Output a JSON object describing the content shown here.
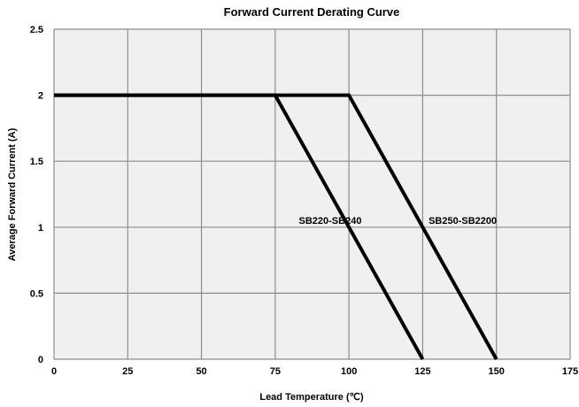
{
  "chart_data": {
    "type": "line",
    "title": "Forward Current Derating Curve",
    "xlabel": "Lead Temperature (℃)",
    "ylabel": "Average Forward Current (A)",
    "xlim": [
      0,
      175
    ],
    "ylim": [
      0,
      2.5
    ],
    "x_ticks": [
      0,
      25,
      50,
      75,
      100,
      125,
      150,
      175
    ],
    "y_ticks": [
      0,
      0.5,
      1,
      1.5,
      2,
      2.5
    ],
    "x_tick_labels": [
      "0",
      "25",
      "50",
      "75",
      "100",
      "125",
      "150",
      "175"
    ],
    "y_tick_labels": [
      "0",
      "0.5",
      "1",
      "1.5",
      "2",
      "2.5"
    ],
    "grid": true,
    "plot_background": "#f0f0f0",
    "grid_color": "#8c8c8c",
    "line_color": "#000000",
    "series": [
      {
        "name": "SB220-SB240",
        "points": [
          [
            0,
            2
          ],
          [
            75,
            2
          ],
          [
            125,
            0
          ]
        ],
        "label_at": [
          83,
          1
        ]
      },
      {
        "name": "SB250-SB2200",
        "points": [
          [
            0,
            2
          ],
          [
            100,
            2
          ],
          [
            150,
            0
          ]
        ],
        "label_at": [
          127,
          1
        ]
      }
    ]
  }
}
